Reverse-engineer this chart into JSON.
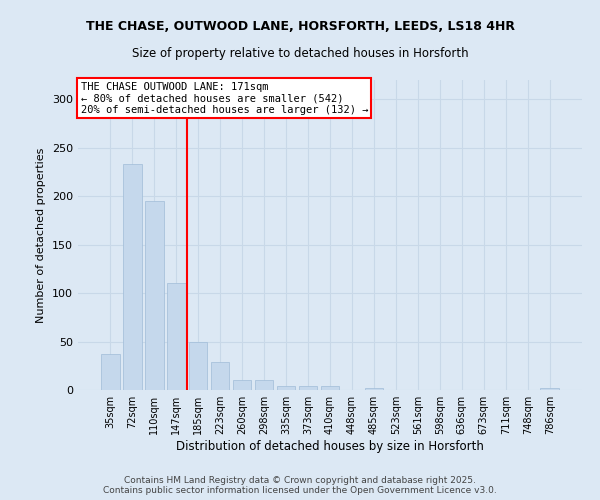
{
  "title_line1": "THE CHASE, OUTWOOD LANE, HORSFORTH, LEEDS, LS18 4HR",
  "title_line2": "Size of property relative to detached houses in Horsforth",
  "xlabel": "Distribution of detached houses by size in Horsforth",
  "ylabel": "Number of detached properties",
  "categories": [
    "35sqm",
    "72sqm",
    "110sqm",
    "147sqm",
    "185sqm",
    "223sqm",
    "260sqm",
    "298sqm",
    "335sqm",
    "373sqm",
    "410sqm",
    "448sqm",
    "485sqm",
    "523sqm",
    "561sqm",
    "598sqm",
    "636sqm",
    "673sqm",
    "711sqm",
    "748sqm",
    "786sqm"
  ],
  "values": [
    37,
    233,
    195,
    110,
    50,
    29,
    10,
    10,
    4,
    4,
    4,
    0,
    2,
    0,
    0,
    0,
    0,
    0,
    0,
    0,
    2
  ],
  "bar_color": "#c5d8ec",
  "bar_edge_color": "#a0bcd8",
  "red_line_color": "red",
  "annotation_text": "THE CHASE OUTWOOD LANE: 171sqm\n← 80% of detached houses are smaller (542)\n20% of semi-detached houses are larger (132) →",
  "annotation_box_color": "white",
  "annotation_box_edge_color": "red",
  "grid_color": "#c8d8e8",
  "background_color": "#dce8f4",
  "ylim": [
    0,
    320
  ],
  "yticks": [
    0,
    50,
    100,
    150,
    200,
    250,
    300
  ],
  "footer_line1": "Contains HM Land Registry data © Crown copyright and database right 2025.",
  "footer_line2": "Contains public sector information licensed under the Open Government Licence v3.0."
}
